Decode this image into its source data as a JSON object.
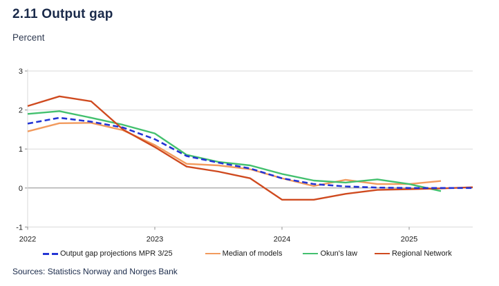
{
  "header": {
    "title": "2.11 Output gap",
    "subtitle": "Percent"
  },
  "footer": {
    "sources": "Sources: Statistics Norway and Norges Bank"
  },
  "palette": {
    "title_navy": "#1a2a4a",
    "gridline": "#d9d9d9",
    "zero_line": "#8c8c8c",
    "axis_tick": "#8c8c8c",
    "tick_label": "#1a1a1a"
  },
  "chart_data": {
    "type": "line",
    "title": "2.11 Output gap",
    "ylabel": "Percent",
    "ylim": [
      -1,
      3
    ],
    "y_ticks": [
      3,
      2,
      1,
      0,
      -1
    ],
    "x_year_labels": [
      "2022",
      "2023",
      "2024",
      "2025"
    ],
    "x": [
      "2022Q1",
      "2022Q2",
      "2022Q3",
      "2022Q4",
      "2023Q1",
      "2023Q2",
      "2023Q3",
      "2023Q4",
      "2024Q1",
      "2024Q2",
      "2024Q3",
      "2024Q4",
      "2025Q1",
      "2025Q2",
      "2025Q3"
    ],
    "grid": "horizontal",
    "legend_position": "bottom",
    "series": [
      {
        "name": "Output gap projections MPR 3/25",
        "color": "#2334d4",
        "style": "dashed",
        "values": [
          1.65,
          1.8,
          1.7,
          1.55,
          1.25,
          0.82,
          0.65,
          0.5,
          0.25,
          0.1,
          0.04,
          0.01,
          0.0,
          0.0,
          0.0
        ]
      },
      {
        "name": "Median of models",
        "color": "#f29a5d",
        "style": "solid",
        "values": [
          1.45,
          1.66,
          1.67,
          1.48,
          1.1,
          0.62,
          0.58,
          0.48,
          0.25,
          0.05,
          0.21,
          0.1,
          0.1,
          0.18,
          null
        ]
      },
      {
        "name": "Okun's law",
        "color": "#42c06e",
        "style": "solid",
        "values": [
          1.9,
          1.97,
          1.8,
          1.62,
          1.4,
          0.85,
          0.67,
          0.58,
          0.36,
          0.19,
          0.14,
          0.22,
          0.1,
          -0.08,
          null
        ]
      },
      {
        "name": "Regional Network",
        "color": "#cf4a1f",
        "style": "solid",
        "values": [
          2.1,
          2.35,
          2.22,
          1.5,
          1.05,
          0.55,
          0.42,
          0.25,
          -0.3,
          -0.3,
          -0.15,
          -0.05,
          -0.03,
          -0.01,
          0.02
        ]
      }
    ]
  }
}
